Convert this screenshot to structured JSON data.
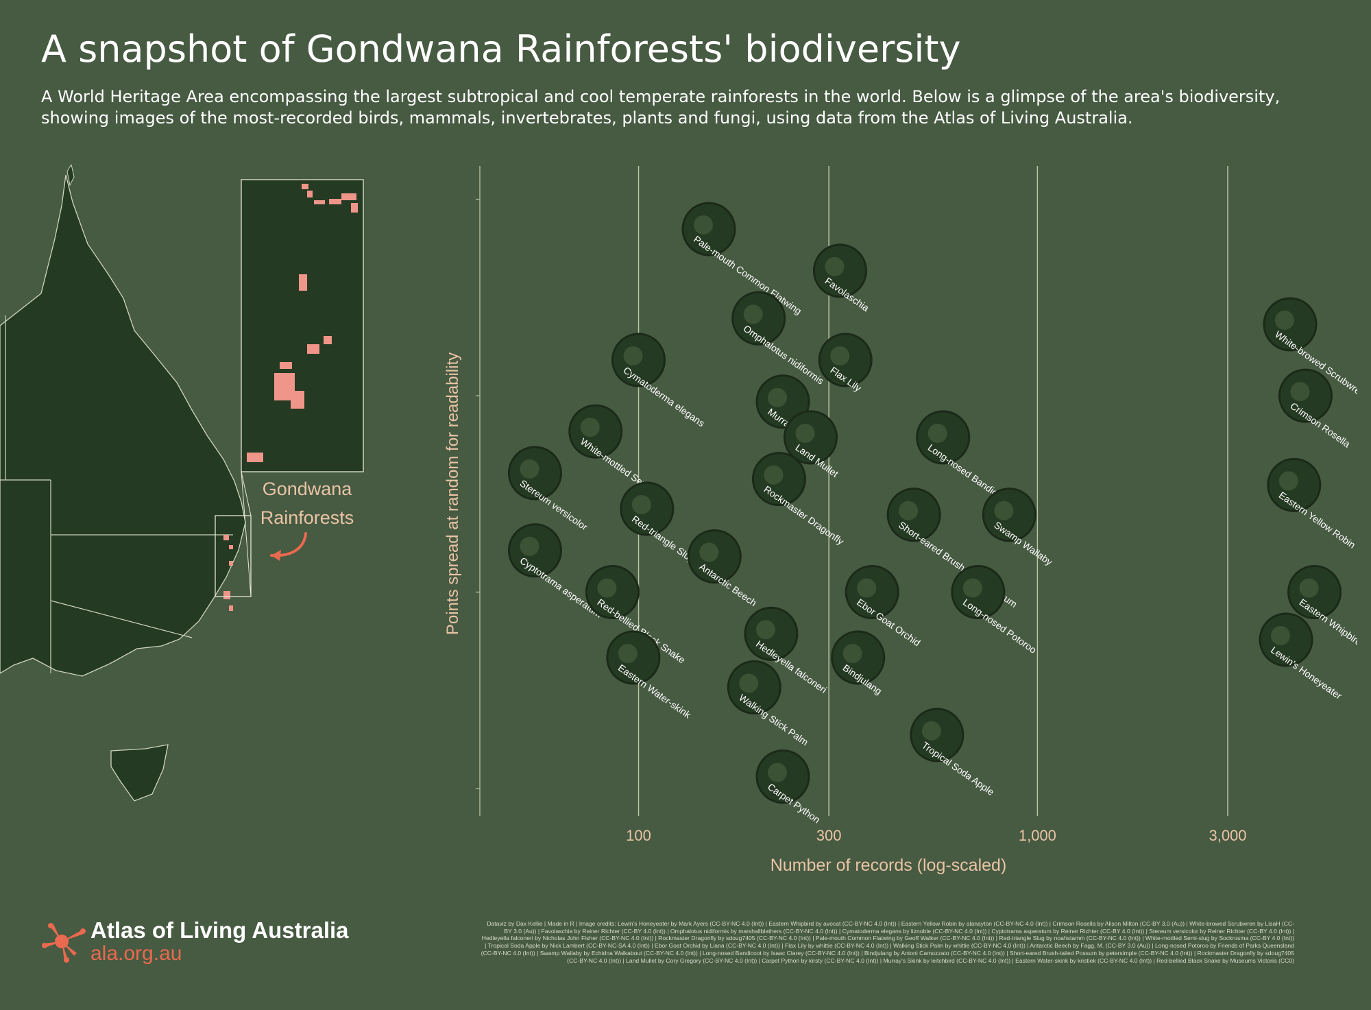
{
  "header": {
    "title": "A snapshot of Gondwana Rainforests' biodiversity",
    "subtitle": "A World Heritage Area encompassing the largest subtropical and cool temperate rainforests in the world. Below is a glimpse of the area's biodiversity, showing images of the most-recorded birds, mammals, invertebrates, plants and fungi, using data from the Atlas of Living Australia."
  },
  "map": {
    "label_line1": "Gondwana",
    "label_line2": "Rainforests",
    "land_color": "#253a22",
    "rainforest_color": "#f0958a",
    "arrow_color": "#e96a4f"
  },
  "chart_data": {
    "type": "scatter",
    "xlabel": "Number of records (log-scaled)",
    "ylabel": "Points spread at random for readability",
    "x_scale": "log",
    "xlim": [
      40,
      5200
    ],
    "ylim": [
      0,
      1
    ],
    "x_ticks": [
      100,
      300,
      1000,
      3000
    ],
    "x_tick_labels": [
      "100",
      "300",
      "1,000",
      "3,000"
    ],
    "grid": "vertical",
    "point_color": "#253a22",
    "points": [
      {
        "name": "Pale-mouth Common Flatwing",
        "x": 150,
        "y": 0.94
      },
      {
        "name": "Favolaschia",
        "x": 320,
        "y": 0.87
      },
      {
        "name": "Omphalotus nidiformis",
        "x": 200,
        "y": 0.79
      },
      {
        "name": "Flax Lily",
        "x": 330,
        "y": 0.72
      },
      {
        "name": "Cymatoderma elegans",
        "x": 100,
        "y": 0.72
      },
      {
        "name": "Murray's Skink",
        "x": 230,
        "y": 0.65
      },
      {
        "name": "Land Mullet",
        "x": 270,
        "y": 0.59
      },
      {
        "name": "Long-nosed Bandicoot",
        "x": 580,
        "y": 0.59
      },
      {
        "name": "White-mottled Semi-slug",
        "x": 78,
        "y": 0.6
      },
      {
        "name": "Stereum versicolor",
        "x": 55,
        "y": 0.53
      },
      {
        "name": "Rockmaster Dragonfly",
        "x": 225,
        "y": 0.52
      },
      {
        "name": "Red-triangle Slug",
        "x": 105,
        "y": 0.47
      },
      {
        "name": "Short-eared Brush-tailed Possum",
        "x": 490,
        "y": 0.46
      },
      {
        "name": "Swamp Wallaby",
        "x": 850,
        "y": 0.46
      },
      {
        "name": "Cyptotrama asperatum",
        "x": 55,
        "y": 0.4
      },
      {
        "name": "Antarctic Beech",
        "x": 155,
        "y": 0.39
      },
      {
        "name": "Red-bellied Black Snake",
        "x": 86,
        "y": 0.33
      },
      {
        "name": "Ebor Goat Orchid",
        "x": 385,
        "y": 0.33
      },
      {
        "name": "Long-nosed Potoroo",
        "x": 710,
        "y": 0.33
      },
      {
        "name": "Hedleyella falconeri",
        "x": 215,
        "y": 0.26
      },
      {
        "name": "Eastern Water-skink",
        "x": 97,
        "y": 0.22
      },
      {
        "name": "Bindjulang",
        "x": 355,
        "y": 0.22
      },
      {
        "name": "Walking Stick Palm",
        "x": 195,
        "y": 0.17
      },
      {
        "name": "Tropical Soda Apple",
        "x": 560,
        "y": 0.09
      },
      {
        "name": "Carpet Python",
        "x": 230,
        "y": 0.02
      },
      {
        "name": "White-browed Scrubwren",
        "x": 4300,
        "y": 0.78
      },
      {
        "name": "Crimson Rosella",
        "x": 4700,
        "y": 0.66
      },
      {
        "name": "Eastern Yellow Robin",
        "x": 4400,
        "y": 0.51
      },
      {
        "name": "Eastern Whipbird",
        "x": 4950,
        "y": 0.33
      },
      {
        "name": "Lewin's Honeyeater",
        "x": 4200,
        "y": 0.25
      }
    ]
  },
  "logo": {
    "name": "Atlas of Living Australia",
    "url": "ala.org.au",
    "icon": "ala-starburst-icon"
  },
  "credits": "Dataviz by Dax Kellie | Made in R | Image credits: Lewin's Honeyeater by Mark Ayers (CC-BY-NC 4.0 (Int)) | Eastern Whipbird by avocat (CC-BY-NC 4.0 (Int)) | Eastern Yellow Robin by alanayton (CC-BY-NC 4.0 (Int)) | Crimson Rosella by Alison Milton (CC-BY 3.0 (Au)) | White-browed Scrubwren by LisaH (CC-BY 3.0 (Au)) | Favolaschia by Reiner Richter (CC-BY 4.0 (Int)) | Omphalotus nidiformis by marshallblathers (CC-BY-NC 4.0 (Int)) | Cymatoderma elegans by liznoble (CC-BY-NC 4.0 (Int)) | Cyptotrama asperatum by Reiner Richter (CC-BY 4.0 (Int)) | Stereum versicolor by Reiner Richter (CC-BY 4.0 (Int)) | Hedleyella falconeri by Nicholas John Fisher (CC-BY-NC 4.0 (Int)) | Rockmaster Dragonfly by sdoug7405 (CC-BY-NC 4.0 (Int)) | Pale-mouth Common Flatwing by Geoff Walker (CC-BY-NC 4.0 (Int)) | Red-triangle Slug by noahstamm (CC-BY-NC 4.0 (Int)) | White-mottled Semi-slug by Sockrosma (CC-BY 4.0 (Int)) | Tropical Soda Apple by Nick Lambert (CC-BY-NC-SA 4.0 (Int)) | Ebor Goat Orchid by Liana (CC-BY-NC 4.0 (Int)) | Flax Lily by whittie (CC-BY-NC 4.0 (Int)) | Walking Stick Palm by whittie (CC-BY-NC 4.0 (Int)) | Antarctic Beech by Fagg, M. (CC-BY 3.0 (Au)) | Long-nosed Potoroo by Friends of Parks Queensland (CC-BY-NC 4.0 (Int)) | Swamp Wallaby by Echidna Walkabout (CC-BY-NC 4.0 (Int)) | Long-nosed Bandicoot by Isaac Clarey (CC-BY-NC 4.0 (Int)) | Bindjulang by Antoni Camozzato (CC-BY-NC 4.0 (Int)) | Short-eared Brush-tailed Possum by petersimple (CC-BY-NC 4.0 (Int)) | Rockmaster Dragonfly by sdoug7405 (CC-BY-NC 4.0 (Int)) | Land Mullet by Cory Gregory (CC-BY-NC 4.0 (Int)) | Carpet Python by kirsty (CC-BY-NC 4.0 (Int)) | Murray's Skink by leitchbird (CC-BY-NC 4.0 (Int)) | Eastern Water-skink by kristiek (CC-BY-NC 4.0 (Int)) | Red-bellied Black Snake by Museums Victoria (CC0)"
}
